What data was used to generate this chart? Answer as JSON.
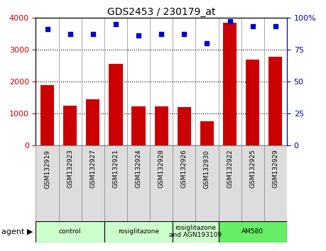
{
  "title": "GDS2453 / 230179_at",
  "samples": [
    "GSM132919",
    "GSM132923",
    "GSM132927",
    "GSM132921",
    "GSM132924",
    "GSM132928",
    "GSM132926",
    "GSM132930",
    "GSM132922",
    "GSM132925",
    "GSM132929"
  ],
  "counts": [
    1880,
    1250,
    1450,
    2550,
    1230,
    1230,
    1200,
    750,
    3850,
    2680,
    2780
  ],
  "percentiles": [
    91,
    87,
    87,
    95,
    86,
    87,
    87,
    80,
    97,
    93,
    93
  ],
  "groups": [
    {
      "label": "control",
      "start": 0,
      "end": 3,
      "color": "#ccffcc"
    },
    {
      "label": "rosiglitazone",
      "start": 3,
      "end": 6,
      "color": "#ccffcc"
    },
    {
      "label": "rosiglitazone\nand AGN193109",
      "start": 6,
      "end": 8,
      "color": "#ccffcc"
    },
    {
      "label": "AM580",
      "start": 8,
      "end": 11,
      "color": "#66ee66"
    }
  ],
  "bar_color": "#cc0000",
  "dot_color": "#0000cc",
  "ylim_left": [
    0,
    4000
  ],
  "ylim_right": [
    0,
    100
  ],
  "yticks_left": [
    0,
    1000,
    2000,
    3000,
    4000
  ],
  "yticks_right": [
    0,
    25,
    50,
    75,
    100
  ],
  "grid_color": "#000000",
  "agent_label": "agent",
  "label_color_left": "#cc0000",
  "label_color_right": "#0000cc",
  "tick_bg_color": "#dddddd",
  "tick_border_color": "#999999"
}
